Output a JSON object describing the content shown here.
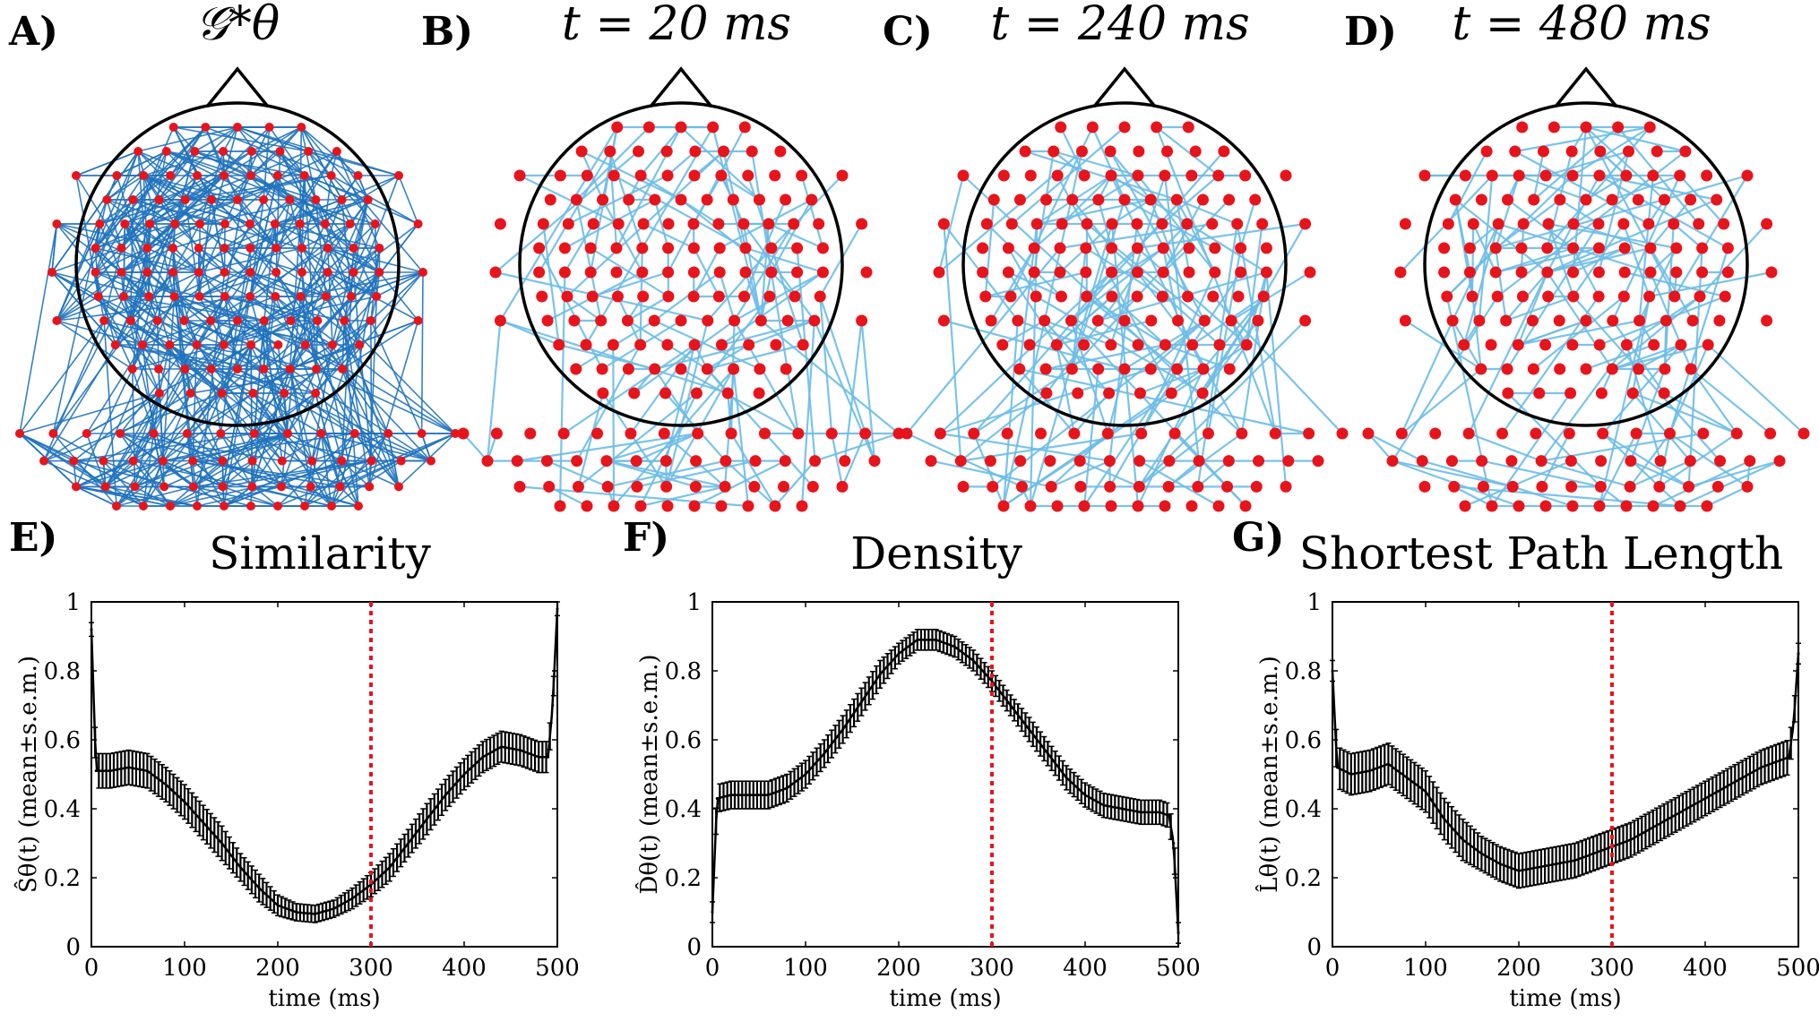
{
  "topo_panels": [
    {
      "label": "A)",
      "title": "𝒢*θ",
      "name": "ground-truth-graph",
      "edge_color": "#1f72be",
      "dense": true
    },
    {
      "label": "B)",
      "title": "t = 20 ms",
      "name": "graph-t20",
      "edge_color": "#6bbde8"
    },
    {
      "label": "C)",
      "title": "t = 240 ms",
      "name": "graph-t240",
      "edge_color": "#6bbde8"
    },
    {
      "label": "D)",
      "title": "t = 480 ms",
      "name": "graph-t480",
      "edge_color": "#6bbde8"
    }
  ],
  "colors": {
    "node": "#e8141b",
    "head": "#000000",
    "series": "#000000",
    "marker_line": "#e8141b"
  },
  "chart_data": [
    {
      "type": "line",
      "panel": "E)",
      "title": "Similarity",
      "xlabel": "time (ms)",
      "ylabel": "Ŝθ(t) (mean±s.e.m.)",
      "xlim": [
        0,
        500
      ],
      "ylim": [
        0,
        1
      ],
      "xticks": [
        "0",
        "100",
        "200",
        "300",
        "400",
        "500"
      ],
      "yticks": [
        "0",
        "0.2",
        "0.4",
        "0.6",
        "0.8",
        "1"
      ],
      "vline_x": 300,
      "x": [
        0,
        5,
        20,
        40,
        60,
        80,
        100,
        120,
        140,
        160,
        180,
        200,
        220,
        240,
        260,
        280,
        300,
        320,
        340,
        360,
        380,
        400,
        420,
        440,
        460,
        480,
        490,
        495,
        500
      ],
      "y": [
        0.92,
        0.51,
        0.51,
        0.52,
        0.51,
        0.47,
        0.42,
        0.36,
        0.3,
        0.23,
        0.17,
        0.12,
        0.1,
        0.095,
        0.11,
        0.14,
        0.18,
        0.23,
        0.3,
        0.37,
        0.44,
        0.5,
        0.55,
        0.58,
        0.57,
        0.55,
        0.55,
        0.7,
        0.98
      ],
      "sem": [
        0.02,
        0.05,
        0.05,
        0.05,
        0.05,
        0.05,
        0.05,
        0.05,
        0.05,
        0.04,
        0.04,
        0.03,
        0.025,
        0.025,
        0.025,
        0.03,
        0.035,
        0.04,
        0.04,
        0.045,
        0.045,
        0.045,
        0.045,
        0.045,
        0.045,
        0.045,
        0.045,
        0.03,
        0.02
      ]
    },
    {
      "type": "line",
      "panel": "F)",
      "title": "Density",
      "xlabel": "time (ms)",
      "ylabel": "D̂θ(t) (mean±s.e.m.)",
      "xlim": [
        0,
        500
      ],
      "ylim": [
        0,
        1
      ],
      "xticks": [
        "0",
        "100",
        "200",
        "300",
        "400",
        "500"
      ],
      "yticks": [
        "0",
        "0.2",
        "0.4",
        "0.6",
        "0.8",
        "1"
      ],
      "vline_x": 300,
      "x": [
        0,
        5,
        20,
        40,
        60,
        80,
        100,
        120,
        140,
        160,
        180,
        200,
        220,
        240,
        260,
        280,
        300,
        320,
        340,
        360,
        380,
        400,
        420,
        440,
        460,
        480,
        490,
        495,
        500
      ],
      "y": [
        0.1,
        0.43,
        0.44,
        0.44,
        0.44,
        0.46,
        0.5,
        0.56,
        0.63,
        0.71,
        0.79,
        0.85,
        0.89,
        0.89,
        0.87,
        0.83,
        0.77,
        0.7,
        0.63,
        0.56,
        0.49,
        0.44,
        0.41,
        0.4,
        0.39,
        0.39,
        0.38,
        0.3,
        0.04
      ],
      "sem": [
        0.03,
        0.04,
        0.04,
        0.04,
        0.04,
        0.04,
        0.04,
        0.04,
        0.04,
        0.04,
        0.04,
        0.03,
        0.03,
        0.03,
        0.03,
        0.03,
        0.03,
        0.03,
        0.035,
        0.035,
        0.035,
        0.035,
        0.035,
        0.035,
        0.035,
        0.035,
        0.035,
        0.04,
        0.03
      ]
    },
    {
      "type": "line",
      "panel": "G)",
      "title": "Shortest Path Length",
      "xlabel": "time (ms)",
      "ylabel": "L̂θ(t) (mean±s.e.m.)",
      "xlim": [
        0,
        500
      ],
      "ylim": [
        0,
        1
      ],
      "xticks": [
        "0",
        "100",
        "200",
        "300",
        "400",
        "500"
      ],
      "yticks": [
        "0",
        "0.2",
        "0.4",
        "0.6",
        "0.8",
        "1"
      ],
      "vline_x": 300,
      "x": [
        0,
        5,
        20,
        40,
        60,
        80,
        100,
        120,
        140,
        160,
        180,
        200,
        220,
        240,
        260,
        280,
        300,
        320,
        340,
        360,
        380,
        400,
        420,
        440,
        460,
        480,
        490,
        495,
        500
      ],
      "y": [
        0.8,
        0.52,
        0.5,
        0.51,
        0.53,
        0.49,
        0.45,
        0.37,
        0.31,
        0.27,
        0.24,
        0.22,
        0.23,
        0.24,
        0.25,
        0.27,
        0.29,
        0.31,
        0.34,
        0.37,
        0.4,
        0.43,
        0.46,
        0.49,
        0.52,
        0.54,
        0.55,
        0.65,
        0.85
      ],
      "sem": [
        0.03,
        0.06,
        0.06,
        0.06,
        0.06,
        0.06,
        0.06,
        0.06,
        0.06,
        0.05,
        0.05,
        0.05,
        0.05,
        0.05,
        0.05,
        0.05,
        0.05,
        0.05,
        0.05,
        0.05,
        0.05,
        0.05,
        0.05,
        0.05,
        0.05,
        0.05,
        0.05,
        0.04,
        0.03
      ]
    }
  ]
}
